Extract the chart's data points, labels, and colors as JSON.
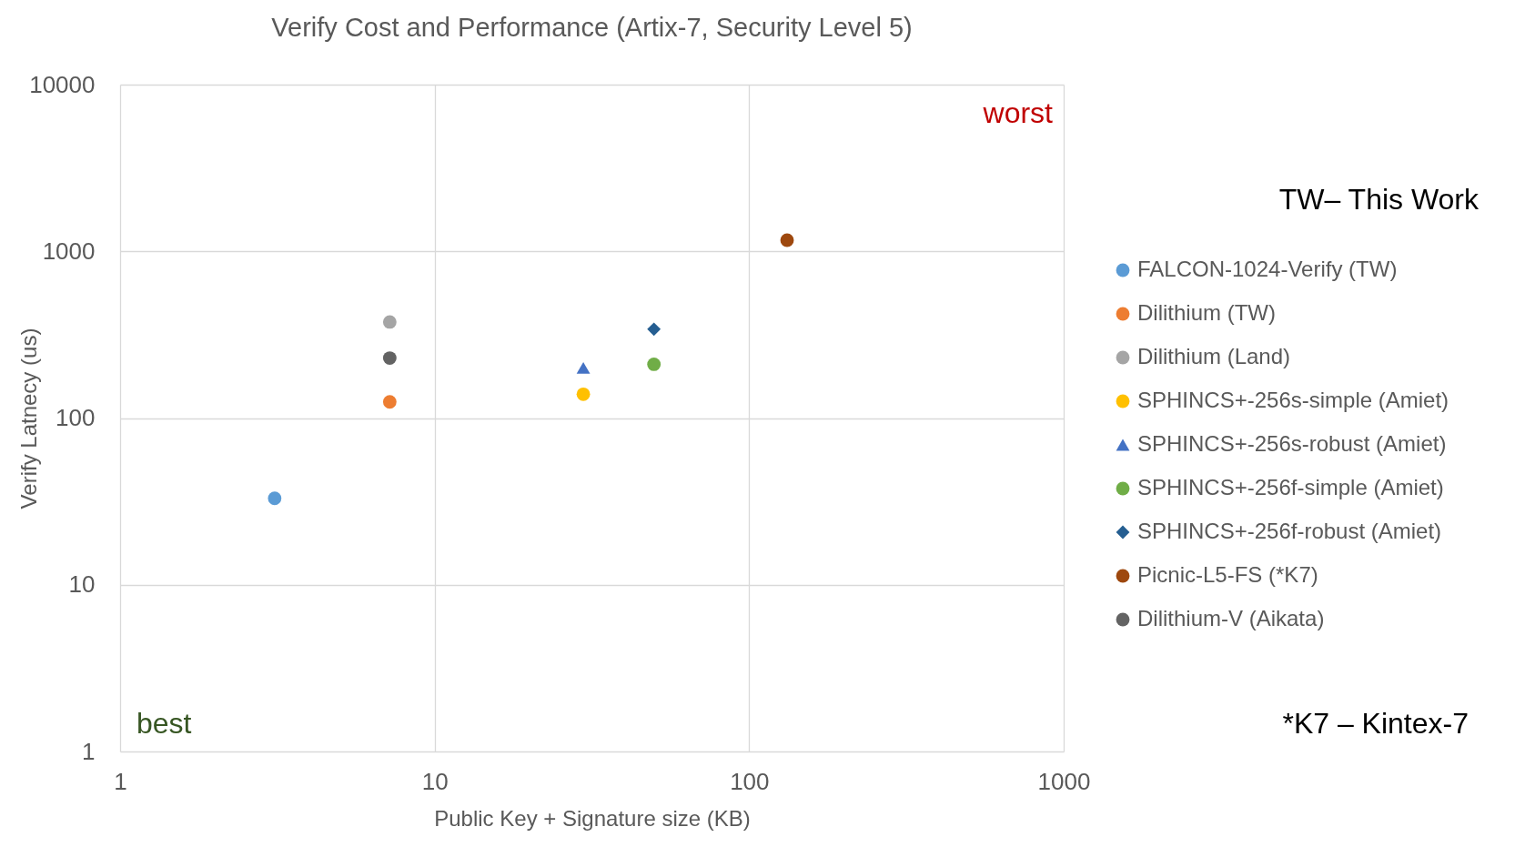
{
  "chart_data": {
    "type": "scatter",
    "title": "Verify Cost and Performance (Artix-7, Security Level 5)",
    "xlabel": "Public Key + Signature size (KB)",
    "ylabel": "Verify Latnecy (us)",
    "series": [
      {
        "name": "FALCON-1024-Verify (TW)",
        "color": "#5b9bd5",
        "marker": "circle",
        "x": [
          3.1
        ],
        "values": [
          33
        ]
      },
      {
        "name": "Dilithium (TW)",
        "color": "#ed7d31",
        "marker": "circle",
        "x": [
          7.2
        ],
        "values": [
          125
        ]
      },
      {
        "name": "Dilithium (Land)",
        "color": "#a5a5a5",
        "marker": "circle",
        "x": [
          7.2
        ],
        "values": [
          377
        ]
      },
      {
        "name": "SPHINCS+-256s-simple (Amiet)",
        "color": "#ffc000",
        "marker": "circle",
        "x": [
          29.7
        ],
        "values": [
          139
        ]
      },
      {
        "name": "SPHINCS+-256s-robust  (Amiet)",
        "color": "#4472c4",
        "marker": "triangle",
        "x": [
          29.7
        ],
        "values": [
          200
        ]
      },
      {
        "name": "SPHINCS+-256f-simple  (Amiet)",
        "color": "#70ad47",
        "marker": "circle",
        "x": [
          49.8
        ],
        "values": [
          210
        ]
      },
      {
        "name": "SPHINCS+-256f-robust  (Amiet)",
        "color": "#255e91",
        "marker": "diamond",
        "x": [
          49.8
        ],
        "values": [
          341
        ]
      },
      {
        "name": "Picnic-L5-FS (*K7)",
        "color": "#9e480e",
        "marker": "circle",
        "x": [
          132
        ],
        "values": [
          1167
        ]
      },
      {
        "name": "Dilithium-V (Aikata)",
        "color": "#636363",
        "marker": "circle",
        "x": [
          7.2
        ],
        "values": [
          229
        ]
      }
    ],
    "xlim": [
      1,
      1000
    ],
    "xticks": [
      1,
      10,
      100,
      1000
    ],
    "ylim": [
      1,
      10000
    ],
    "yticks": [
      1,
      10,
      100,
      1000,
      10000
    ],
    "log": "xy",
    "grid": true,
    "legend": "right",
    "annotations": [
      "worst",
      "best",
      "TW– This Work",
      "*K7 – Kintex-7"
    ]
  }
}
